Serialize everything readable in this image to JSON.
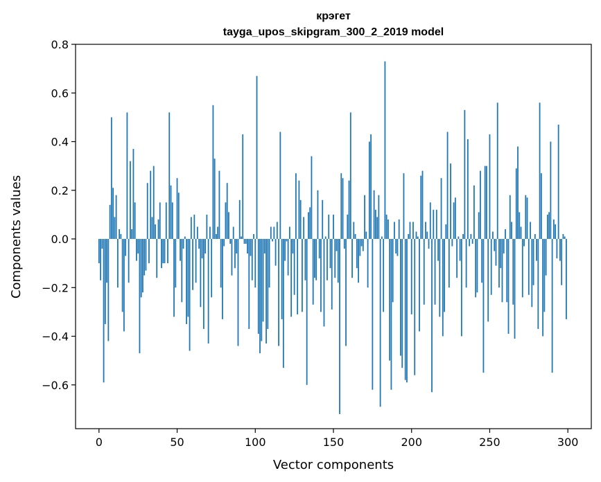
{
  "chart_data": {
    "type": "bar",
    "title": "крэгет",
    "subtitle": "tayga_upos_skipgram_300_2_2019 model",
    "xlabel": "Vector components",
    "ylabel": "Components values",
    "xlim": [
      -15,
      315
    ],
    "ylim": [
      -0.78,
      0.8
    ],
    "xticks": [
      0,
      50,
      100,
      150,
      200,
      250,
      300
    ],
    "yticks": [
      -0.6,
      -0.4,
      -0.2,
      0.0,
      0.2,
      0.4,
      0.6,
      0.8
    ],
    "xtick_labels": [
      "0",
      "50",
      "100",
      "150",
      "200",
      "250",
      "300"
    ],
    "ytick_labels": [
      "−0.6",
      "−0.4",
      "−0.2",
      "0.0",
      "0.2",
      "0.4",
      "0.6",
      "0.8"
    ],
    "bar_color": "#1f77b4",
    "grid": false,
    "legend": "none",
    "x": "0..299 (one bar per component)",
    "values": [
      -0.1,
      -0.17,
      -0.04,
      -0.59,
      -0.35,
      -0.18,
      -0.42,
      0.14,
      0.5,
      0.21,
      0.09,
      0.18,
      -0.2,
      0.04,
      0.02,
      -0.3,
      -0.38,
      -0.07,
      0.52,
      -0.18,
      0.32,
      0.04,
      0.37,
      0.15,
      -0.09,
      -0.06,
      -0.47,
      -0.24,
      -0.22,
      -0.15,
      -0.13,
      0.23,
      -0.1,
      0.28,
      0.09,
      0.3,
      0.06,
      -0.16,
      0.08,
      0.15,
      -0.12,
      -0.1,
      -0.1,
      0.15,
      -0.1,
      0.52,
      0.22,
      0.15,
      -0.32,
      -0.2,
      0.25,
      0.19,
      -0.09,
      -0.26,
      -0.04,
      0.01,
      -0.35,
      -0.32,
      -0.46,
      0.09,
      -0.21,
      0.1,
      -0.18,
      0.05,
      -0.04,
      -0.28,
      -0.08,
      -0.37,
      -0.06,
      0.1,
      -0.43,
      0.05,
      -0.24,
      0.55,
      0.33,
      0.02,
      0.05,
      0.28,
      -0.2,
      -0.33,
      -0.03,
      0.15,
      0.23,
      0.11,
      -0.02,
      -0.15,
      0.05,
      -0.12,
      -0.06,
      -0.44,
      0.16,
      0.01,
      0.43,
      -0.02,
      -0.02,
      -0.06,
      -0.37,
      -0.07,
      -0.17,
      0.02,
      -0.2,
      0.67,
      -0.39,
      -0.47,
      -0.42,
      -0.34,
      -0.06,
      -0.43,
      -0.37,
      -0.2,
      0.05,
      -0.01,
      0.05,
      -0.11,
      0.07,
      -0.44,
      0.44,
      -0.33,
      -0.53,
      -0.09,
      -0.01,
      -0.15,
      0.05,
      -0.32,
      -0.06,
      -0.23,
      0.27,
      -0.31,
      0.24,
      0.16,
      -0.3,
      0.09,
      -0.17,
      -0.6,
      0.11,
      0.13,
      0.34,
      -0.27,
      -0.16,
      -0.17,
      0.2,
      -0.08,
      -0.3,
      0.16,
      -0.36,
      0.01,
      -0.17,
      0.1,
      -0.12,
      -0.29,
      0.1,
      -0.16,
      -0.05,
      -0.18,
      -0.72,
      0.27,
      0.25,
      -0.04,
      -0.44,
      0.1,
      0.24,
      0.52,
      -0.16,
      0.07,
      0.02,
      -0.12,
      -0.18,
      -0.07,
      -0.03,
      -0.05,
      0.18,
      0.03,
      -0.2,
      0.4,
      0.43,
      -0.62,
      0.2,
      0.12,
      0.09,
      0.18,
      -0.69,
      0.01,
      -0.3,
      0.73,
      0.1,
      0.08,
      -0.5,
      -0.62,
      -0.26,
      0.07,
      -0.06,
      -0.07,
      0.08,
      -0.48,
      -0.53,
      0.27,
      -0.58,
      -0.59,
      0.02,
      0.07,
      -0.31,
      0.07,
      -0.56,
      0.03,
      0.01,
      -0.38,
      0.26,
      0.28,
      -0.27,
      0.07,
      0.03,
      -0.04,
      0.15,
      -0.63,
      0.12,
      -0.27,
      0.12,
      -0.09,
      -0.32,
      0.25,
      -0.4,
      -0.3,
      0.06,
      0.44,
      -0.2,
      0.31,
      -0.03,
      0.15,
      0.17,
      -0.16,
      0.01,
      -0.09,
      -0.4,
      0.02,
      0.53,
      -0.2,
      0.41,
      -0.03,
      0.02,
      -0.02,
      0.22,
      -0.24,
      -0.22,
      0.11,
      0.28,
      -0.18,
      -0.55,
      0.3,
      0.3,
      -0.34,
      0.43,
      -0.23,
      0.03,
      -0.05,
      -0.11,
      0.56,
      -0.2,
      -0.12,
      -0.26,
      -0.06,
      0.04,
      -0.26,
      -0.39,
      0.18,
      0.07,
      -0.27,
      -0.41,
      0.29,
      0.38,
      0.11,
      0.05,
      -0.24,
      -0.03,
      0.18,
      0.17,
      -0.23,
      0.07,
      -0.28,
      -0.19,
      0.02,
      -0.09,
      -0.37,
      0.56,
      0.27,
      -0.4,
      -0.3,
      -0.15,
      0.1,
      0.11,
      0.4,
      -0.55,
      0.08,
      0.06,
      -0.08,
      0.47,
      -0.09,
      -0.19,
      0.02,
      0.01,
      -0.33
    ]
  }
}
